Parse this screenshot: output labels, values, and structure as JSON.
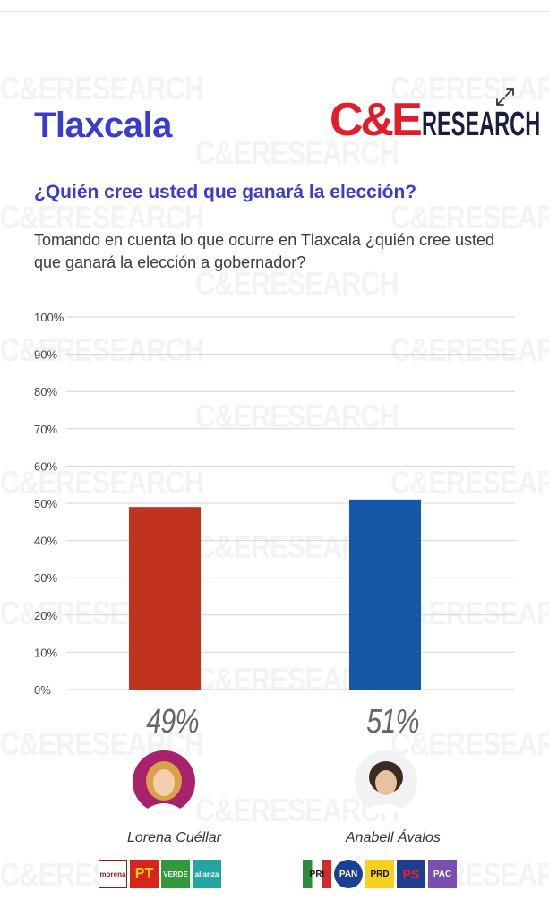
{
  "header": {
    "region": "Tlaxcala",
    "logo": {
      "ce": "C&E",
      "research": "RESEARCH"
    }
  },
  "watermark_text": "C&ERESEARCH",
  "question": "¿Quién cree usted que ganará la elección?",
  "subtitle": "Tomando en cuenta lo que ocurre en Tlaxcala ¿quién cree usted que ganará la elección a gobernador?",
  "icons": {
    "expand": "expand-icon"
  },
  "colors": {
    "accent": "#3b3bd0",
    "logo_red": "#e11d2a",
    "bar_red": "#c1321f",
    "bar_blue": "#1558a7"
  },
  "chart_data": {
    "type": "bar",
    "categories": [
      "Lorena Cuéllar",
      "Anabell Ávalos"
    ],
    "values": [
      49,
      51
    ],
    "data_labels": [
      "49%",
      "51%"
    ],
    "bar_colors": [
      "#c1321f",
      "#1558a7"
    ],
    "yticks": [
      "0%",
      "10%",
      "20%",
      "30%",
      "40%",
      "50%",
      "60%",
      "70%",
      "80%",
      "90%",
      "100%"
    ],
    "ylim": [
      0,
      100
    ],
    "grid": true,
    "title": "",
    "xlabel": "",
    "ylabel": ""
  },
  "candidates": [
    {
      "name": "Lorena Cuéllar",
      "parties": [
        "morena",
        "PT",
        "VERDE",
        "alianza"
      ]
    },
    {
      "name": "Anabell Ávalos",
      "parties": [
        "PRI",
        "PAN",
        "PRD",
        "PS",
        "PAC"
      ]
    }
  ]
}
